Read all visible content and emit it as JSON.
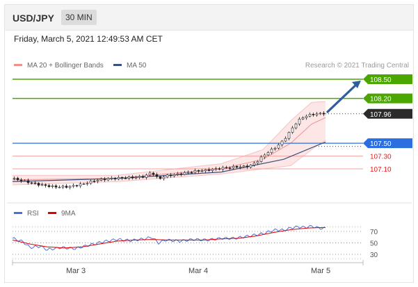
{
  "header": {
    "symbol": "USD/JPY",
    "timeframe": "30 MIN"
  },
  "timestamp": "Friday, March 5, 2021 12:49:53 AM CET",
  "legend": {
    "bb_label": "MA 20 + Bollinger Bands",
    "ma50_label": "MA 50"
  },
  "copyright": "Research © 2021 Trading Central",
  "colors": {
    "resistance": "#4ca600",
    "support": "#2a6ee0",
    "secondary_support": "#e02020",
    "ma50": "#3b4f7e",
    "bollinger": "#f18f8f",
    "rsi": "#4a6fdc",
    "rsi_ma": "#e00000"
  },
  "chart_data": [
    {
      "type": "candlestick",
      "title": "",
      "x_labels": [
        "Mar 3",
        "Mar 4",
        "Mar 5"
      ],
      "current_price": 107.96,
      "levels": [
        {
          "value": 108.5,
          "label": "108.50",
          "kind": "resistance"
        },
        {
          "value": 108.2,
          "label": "108.20",
          "kind": "resistance"
        },
        {
          "value": 107.96,
          "label": "107.96",
          "kind": "current"
        },
        {
          "value": 107.5,
          "label": "107.50",
          "kind": "pivot"
        },
        {
          "value": 107.3,
          "label": "107.30",
          "kind": "support"
        },
        {
          "value": 107.1,
          "label": "107.10",
          "kind": "support"
        }
      ],
      "price_path": [
        [
          0,
          106.95
        ],
        [
          4,
          106.9
        ],
        [
          8,
          106.85
        ],
        [
          12,
          106.82
        ],
        [
          16,
          106.82
        ],
        [
          20,
          106.86
        ],
        [
          24,
          106.92
        ],
        [
          28,
          106.95
        ],
        [
          32,
          106.96
        ],
        [
          36,
          106.97
        ],
        [
          38,
          106.98
        ],
        [
          40,
          107.05
        ],
        [
          42,
          106.94
        ],
        [
          44,
          106.99
        ],
        [
          48,
          107.02
        ],
        [
          52,
          107.06
        ],
        [
          56,
          107.08
        ],
        [
          60,
          107.11
        ],
        [
          64,
          107.13
        ],
        [
          68,
          107.14
        ],
        [
          70,
          107.2
        ],
        [
          72,
          107.3
        ],
        [
          74,
          107.38
        ],
        [
          76,
          107.45
        ],
        [
          78,
          107.55
        ],
        [
          80,
          107.7
        ],
        [
          82,
          107.85
        ],
        [
          84,
          107.92
        ],
        [
          86,
          107.95
        ],
        [
          88,
          107.96
        ],
        [
          90,
          107.97
        ]
      ],
      "ma50_path": [
        [
          0,
          106.9
        ],
        [
          30,
          106.95
        ],
        [
          60,
          107.05
        ],
        [
          78,
          107.25
        ],
        [
          90,
          107.52
        ]
      ],
      "bollinger_upper": [
        [
          0,
          107.0
        ],
        [
          30,
          107.0
        ],
        [
          60,
          107.18
        ],
        [
          72,
          107.4
        ],
        [
          80,
          107.85
        ],
        [
          86,
          108.14
        ],
        [
          90,
          108.15
        ]
      ],
      "bollinger_mid": [
        [
          0,
          106.93
        ],
        [
          30,
          106.95
        ],
        [
          60,
          107.1
        ],
        [
          72,
          107.25
        ],
        [
          80,
          107.5
        ],
        [
          86,
          107.8
        ],
        [
          90,
          107.9
        ]
      ],
      "bollinger_lower": [
        [
          0,
          106.85
        ],
        [
          30,
          106.9
        ],
        [
          60,
          107.02
        ],
        [
          72,
          107.1
        ],
        [
          80,
          107.15
        ],
        [
          86,
          107.4
        ],
        [
          90,
          107.55
        ]
      ]
    },
    {
      "type": "line",
      "title": "",
      "legend": [
        "RSI",
        "9MA"
      ],
      "ylim": [
        15,
        85
      ],
      "y_ticks": [
        70,
        50,
        30
      ],
      "rsi_path": [
        [
          0,
          58
        ],
        [
          3,
          52
        ],
        [
          5,
          42
        ],
        [
          8,
          44
        ],
        [
          10,
          38
        ],
        [
          14,
          42
        ],
        [
          18,
          40
        ],
        [
          22,
          46
        ],
        [
          26,
          52
        ],
        [
          30,
          56
        ],
        [
          34,
          54
        ],
        [
          38,
          57
        ],
        [
          40,
          60
        ],
        [
          42,
          50
        ],
        [
          44,
          55
        ],
        [
          48,
          53
        ],
        [
          52,
          56
        ],
        [
          56,
          55
        ],
        [
          60,
          58
        ],
        [
          64,
          58
        ],
        [
          68,
          62
        ],
        [
          72,
          66
        ],
        [
          74,
          70
        ],
        [
          76,
          73
        ],
        [
          78,
          72
        ],
        [
          80,
          76
        ],
        [
          82,
          78
        ],
        [
          84,
          77
        ],
        [
          86,
          79
        ],
        [
          88,
          76
        ],
        [
          90,
          75
        ]
      ],
      "ma_path": [
        [
          0,
          55
        ],
        [
          5,
          48
        ],
        [
          10,
          43
        ],
        [
          15,
          41
        ],
        [
          20,
          43
        ],
        [
          25,
          48
        ],
        [
          30,
          53
        ],
        [
          35,
          55
        ],
        [
          40,
          56
        ],
        [
          45,
          55
        ],
        [
          50,
          55
        ],
        [
          55,
          55
        ],
        [
          60,
          57
        ],
        [
          65,
          58
        ],
        [
          70,
          62
        ],
        [
          75,
          68
        ],
        [
          80,
          73
        ],
        [
          85,
          76
        ],
        [
          90,
          77
        ]
      ]
    }
  ]
}
